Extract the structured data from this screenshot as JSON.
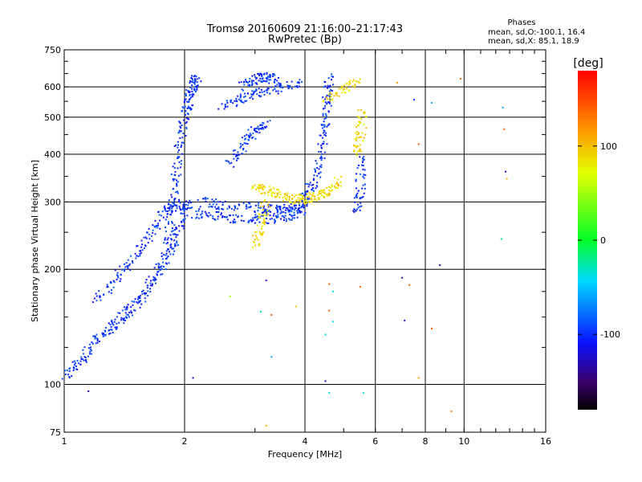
{
  "chart_data": {
    "type": "scatter",
    "title": "Tromsø 20160609 21:16:00–21:17:43",
    "subtitle": "RwPretec (Bp)",
    "xlabel": "Frequency [MHz]",
    "ylabel": "Stationary phase Virtual Height [km]",
    "x_scale": "log",
    "y_scale": "log",
    "xlim": [
      1,
      16
    ],
    "ylim": [
      75,
      750
    ],
    "x_ticks": [
      1,
      2,
      4,
      6,
      8,
      10,
      16
    ],
    "y_ticks": [
      75,
      100,
      200,
      300,
      400,
      500,
      600,
      750
    ],
    "grid": true,
    "phase_box": {
      "title": "Phases",
      "line1": "mean, sd,O:-100.1, 16.4",
      "line2": "mean, sd,X:  85.1, 18.9"
    },
    "colorbar": {
      "label": "[deg]",
      "range": [
        -180,
        180
      ],
      "ticks": [
        100,
        0,
        -100
      ],
      "tick_labels": [
        "100",
        "0",
        "-100"
      ],
      "colormap": "rainbow"
    },
    "series": [
      {
        "mode": "O",
        "phase_mean": -100.1,
        "phase_sd": 16.4,
        "color": "#1a2bff",
        "traces": [
          {
            "x": [
              1.0,
              1.1,
              1.2,
              1.3,
              1.4,
              1.5,
              1.6,
              1.7,
              1.8,
              1.9,
              2.0,
              2.05
            ],
            "y": [
              105,
              115,
              130,
              140,
              150,
              160,
              175,
              195,
              215,
              240,
              280,
              300
            ]
          },
          {
            "x": [
              1.2,
              1.35,
              1.5,
              1.65,
              1.8,
              1.95
            ],
            "y": [
              165,
              190,
              215,
              250,
              285,
              300
            ]
          },
          {
            "x": [
              1.8,
              1.85,
              1.9,
              1.95,
              2.0,
              2.05,
              2.1,
              2.15
            ],
            "y": [
              220,
              280,
              350,
              420,
              500,
              560,
              600,
              640
            ]
          },
          {
            "x": [
              2.1,
              2.4,
              2.8,
              3.2,
              3.6,
              3.9,
              4.0
            ],
            "y": [
              280,
              275,
              270,
              270,
              275,
              285,
              300
            ]
          },
          {
            "x": [
              2.2,
              2.5,
              3.0,
              3.3,
              3.6,
              3.9
            ],
            "y": [
              300,
              295,
              290,
              288,
              290,
              295
            ]
          },
          {
            "x": [
              4.0,
              4.2,
              4.4,
              4.5,
              4.55,
              4.6
            ],
            "y": [
              310,
              340,
              400,
              480,
              560,
              640
            ]
          },
          {
            "x": [
              2.5,
              2.8,
              3.1,
              3.5,
              3.9
            ],
            "y": [
              530,
              560,
              580,
              600,
              610
            ]
          },
          {
            "x": [
              2.8,
              3.0,
              3.2,
              3.4
            ],
            "y": [
              600,
              630,
              640,
              620
            ]
          },
          {
            "x": [
              2.6,
              2.8,
              3.0,
              3.2
            ],
            "y": [
              380,
              420,
              460,
              480
            ]
          },
          {
            "x": [
              5.4,
              5.5,
              5.55
            ],
            "y": [
              280,
              320,
              400
            ]
          }
        ]
      },
      {
        "mode": "X",
        "phase_mean": 85.1,
        "phase_sd": 18.9,
        "color": "#e8e800",
        "traces": [
          {
            "x": [
              3.0,
              3.2,
              3.5,
              3.8,
              4.0,
              4.3,
              4.6,
              4.9
            ],
            "y": [
              330,
              320,
              310,
              305,
              305,
              310,
              320,
              340
            ]
          },
          {
            "x": [
              3.0,
              3.1,
              3.2
            ],
            "y": [
              230,
              260,
              300
            ]
          },
          {
            "x": [
              5.4,
              5.5,
              5.6
            ],
            "y": [
              400,
              450,
              520
            ]
          },
          {
            "x": [
              4.5,
              5.0,
              5.5
            ],
            "y": [
              560,
              590,
              620
            ]
          }
        ]
      }
    ],
    "sparse_points": [
      {
        "x": 6.8,
        "y": 615,
        "phase": 120
      },
      {
        "x": 7.5,
        "y": 555,
        "phase": -100
      },
      {
        "x": 7.7,
        "y": 425,
        "phase": 140
      },
      {
        "x": 8.3,
        "y": 545,
        "phase": -60
      },
      {
        "x": 9.8,
        "y": 630,
        "phase": 130
      },
      {
        "x": 12.5,
        "y": 530,
        "phase": -60
      },
      {
        "x": 12.6,
        "y": 465,
        "phase": 140
      },
      {
        "x": 12.8,
        "y": 345,
        "phase": 100
      },
      {
        "x": 12.7,
        "y": 360,
        "phase": -120
      },
      {
        "x": 12.4,
        "y": 240,
        "phase": -20
      },
      {
        "x": 8.7,
        "y": 205,
        "phase": -130
      },
      {
        "x": 7.0,
        "y": 190,
        "phase": -130
      },
      {
        "x": 7.3,
        "y": 182,
        "phase": 140
      },
      {
        "x": 7.1,
        "y": 147,
        "phase": -120
      },
      {
        "x": 8.3,
        "y": 140,
        "phase": 140
      },
      {
        "x": 7.7,
        "y": 104,
        "phase": 110
      },
      {
        "x": 9.3,
        "y": 85,
        "phase": 130
      },
      {
        "x": 5.5,
        "y": 180,
        "phase": 140
      },
      {
        "x": 4.6,
        "y": 183,
        "phase": 140
      },
      {
        "x": 4.7,
        "y": 175,
        "phase": -40
      },
      {
        "x": 4.6,
        "y": 156,
        "phase": 140
      },
      {
        "x": 4.7,
        "y": 146,
        "phase": -40
      },
      {
        "x": 4.5,
        "y": 135,
        "phase": -40
      },
      {
        "x": 4.5,
        "y": 102,
        "phase": -120
      },
      {
        "x": 4.6,
        "y": 95,
        "phase": -40
      },
      {
        "x": 5.6,
        "y": 95,
        "phase": -40
      },
      {
        "x": 3.2,
        "y": 187,
        "phase": -120
      },
      {
        "x": 3.1,
        "y": 155,
        "phase": -30
      },
      {
        "x": 3.3,
        "y": 152,
        "phase": 140
      },
      {
        "x": 2.6,
        "y": 170,
        "phase": 50
      },
      {
        "x": 3.8,
        "y": 160,
        "phase": 100
      },
      {
        "x": 3.3,
        "y": 118,
        "phase": -60
      },
      {
        "x": 2.1,
        "y": 104,
        "phase": -120
      },
      {
        "x": 1.15,
        "y": 96,
        "phase": -120
      },
      {
        "x": 3.2,
        "y": 78,
        "phase": 100
      }
    ]
  }
}
